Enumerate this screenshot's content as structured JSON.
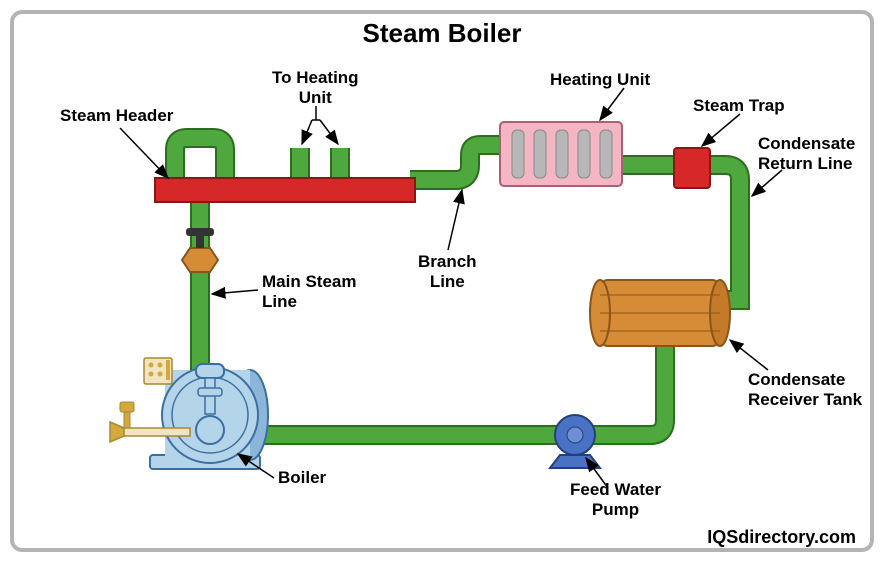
{
  "title": "Steam Boiler",
  "watermark": "IQSdirectory.com",
  "labels": {
    "steam_header": "Steam Header",
    "to_heating_unit": "To Heating\nUnit",
    "heating_unit": "Heating Unit",
    "steam_trap": "Steam Trap",
    "condensate_return": "Condensate\nReturn Line",
    "main_steam_line": "Main Steam\nLine",
    "branch_line": "Branch\nLine",
    "boiler": "Boiler",
    "feed_water_pump": "Feed Water\nPump",
    "condensate_receiver": "Condensate\nReceiver Tank"
  },
  "colors": {
    "pipe_fill": "#4fa83e",
    "pipe_stroke": "#2a6e1e",
    "header_fill": "#d62828",
    "header_stroke": "#8a1616",
    "heating_fill": "#f4b6c2",
    "heating_stroke": "#aa5f72",
    "heating_coil": "#b7b7b7",
    "trap_fill": "#d62828",
    "trap_stroke": "#8a1616",
    "tank_fill": "#d68b36",
    "tank_stroke": "#8a5518",
    "boiler_body": "#b4d4ea",
    "boiler_stroke": "#3b6fa0",
    "boiler_front": "#8bb6d9",
    "valve_fill": "#d68b36",
    "pump_fill": "#4a72c4",
    "pump_stroke": "#24407a",
    "gold": "#d4a93c",
    "arrow_stroke": "#000000"
  },
  "pipe_width": 16
}
